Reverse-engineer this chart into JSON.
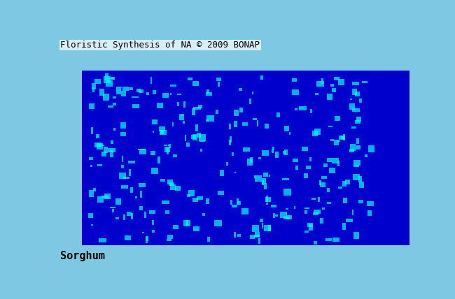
{
  "title": "Floristic Synthesis of NA © 2009 BONAP",
  "subtitle": "Sorghum",
  "background_color": "#7EC8E3",
  "us_county_dark_blue": "#0000CD",
  "us_county_cyan": "#00FFFF",
  "canada_brown": "#B8860B",
  "mexico_gray": "#A9A9A9",
  "water_color": "#87CEEB",
  "county_border_color": "#5C3317",
  "state_border_color": "#000000",
  "title_fontsize": 9,
  "subtitle_fontsize": 11,
  "figsize": [
    6.5,
    4.28
  ],
  "dpi": 100,
  "xlim": [
    -130,
    -60
  ],
  "ylim": [
    22,
    55
  ]
}
